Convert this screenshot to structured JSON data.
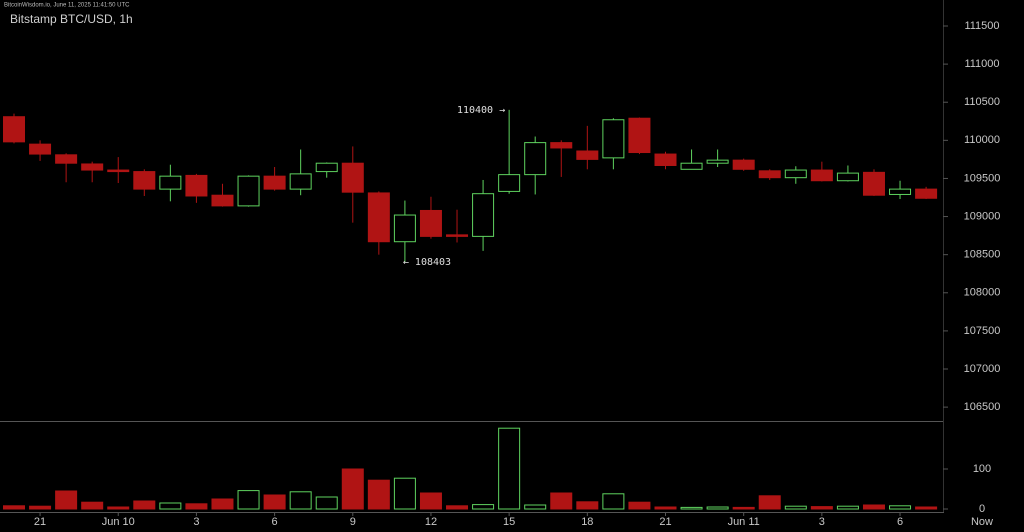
{
  "chart_data": {
    "type": "candlestick",
    "source": "BitcoinWisdom.io, June 11, 2025 11:41:50 UTC",
    "title": "Bitstamp BTC/USD, 1h",
    "categories": [
      null,
      "21",
      null,
      null,
      "Jun 10",
      null,
      null,
      "3",
      null,
      null,
      "6",
      null,
      null,
      "9",
      null,
      null,
      "12",
      null,
      null,
      "15",
      null,
      null,
      "18",
      null,
      null,
      "21",
      null,
      null,
      "Jun 11",
      null,
      null,
      "3",
      null,
      null,
      "6",
      null
    ],
    "now_label": "Now",
    "open": [
      110310,
      109950,
      109810,
      109690,
      109610,
      109590,
      109360,
      109540,
      109280,
      109140,
      109530,
      109360,
      109590,
      109700,
      109310,
      108670,
      109080,
      108760,
      108740,
      109330,
      109550,
      109970,
      109860,
      109770,
      110290,
      109820,
      109620,
      109700,
      109740,
      109600,
      109510,
      109610,
      109470,
      109580,
      109290,
      109360
    ],
    "high": [
      110350,
      110000,
      109830,
      109720,
      109780,
      109620,
      109680,
      109560,
      109430,
      109540,
      109650,
      109880,
      109710,
      109920,
      109330,
      109210,
      109260,
      109090,
      109480,
      110400,
      110050,
      110000,
      110190,
      110290,
      110300,
      109850,
      109880,
      109880,
      109760,
      109620,
      109660,
      109720,
      109670,
      109620,
      109470,
      109390
    ],
    "low": [
      109960,
      109730,
      109450,
      109450,
      109440,
      109270,
      109200,
      109180,
      109130,
      109130,
      109340,
      109280,
      109510,
      108920,
      108500,
      108403,
      108710,
      108660,
      108550,
      109300,
      109290,
      109520,
      109620,
      109620,
      109820,
      109620,
      109620,
      109650,
      109600,
      109480,
      109430,
      109460,
      109460,
      109270,
      109230,
      109230
    ],
    "close": [
      109980,
      109820,
      109700,
      109610,
      109590,
      109360,
      109530,
      109270,
      109140,
      109530,
      109360,
      109560,
      109700,
      109320,
      108670,
      109020,
      108740,
      108740,
      109300,
      109550,
      109970,
      109900,
      109750,
      110270,
      109840,
      109670,
      109700,
      109740,
      109620,
      109510,
      109610,
      109470,
      109570,
      109280,
      109360,
      109240
    ],
    "volume": [
      8,
      7,
      45,
      17,
      5,
      20,
      15,
      13,
      25,
      46,
      35,
      43,
      30,
      100,
      72,
      77,
      40,
      8,
      11,
      202,
      10,
      40,
      18,
      38,
      17,
      5,
      4,
      5,
      4,
      33,
      7,
      6,
      7,
      10,
      8,
      5
    ],
    "ylim": [
      106318,
      111841
    ],
    "yticks": [
      106500,
      107000,
      107500,
      108000,
      108500,
      109000,
      109500,
      110000,
      110500,
      111000,
      111500
    ],
    "volume_ylim": [
      0,
      215
    ],
    "volume_yticks": [
      0,
      100
    ],
    "up_color": "#5fd35f",
    "down_color": "#b01414",
    "annotations": [
      "110400 →",
      "← 108403"
    ]
  }
}
